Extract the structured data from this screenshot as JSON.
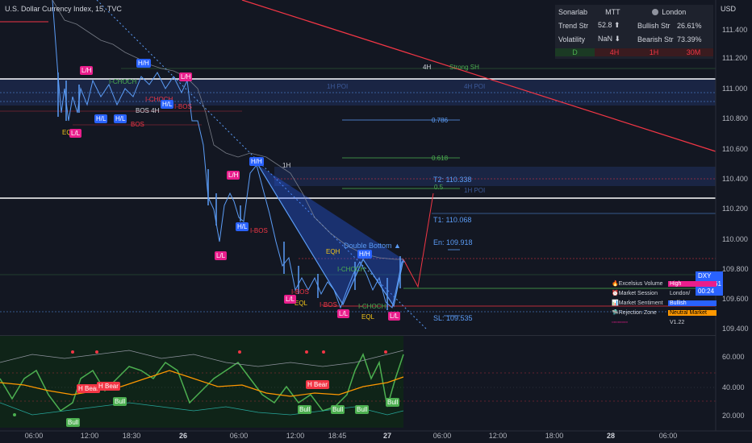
{
  "header": {
    "symbol_line": "U.S. Dollar Currency Index, 15, TVC",
    "currency": "USD"
  },
  "price_axis": {
    "ticks": [
      "111.400",
      "111.200",
      "111.000",
      "110.800",
      "110.600",
      "110.400",
      "110.200",
      "110.000",
      "109.800",
      "109.600",
      "109.400"
    ],
    "osc_ticks": [
      "60.000",
      "40.000",
      "20.000"
    ],
    "current_price": {
      "symbol": "DXY",
      "value": "109.761",
      "countdown": "00:24"
    }
  },
  "time_axis": [
    {
      "label": "06:00",
      "bold": false
    },
    {
      "label": "12:00",
      "bold": false
    },
    {
      "label": "18:30",
      "bold": false
    },
    {
      "label": "26",
      "bold": true
    },
    {
      "label": "06:00",
      "bold": false
    },
    {
      "label": "12:00",
      "bold": false
    },
    {
      "label": "18:45",
      "bold": false
    },
    {
      "label": "27",
      "bold": true
    },
    {
      "label": "06:00",
      "bold": false
    },
    {
      "label": "12:00",
      "bold": false
    },
    {
      "label": "18:00",
      "bold": false
    },
    {
      "label": "28",
      "bold": true
    },
    {
      "label": "06:00",
      "bold": false
    }
  ],
  "dashboard": {
    "row1": [
      "Sonarlab",
      "MTT",
      "London"
    ],
    "row2": [
      "Trend Str",
      "52.8 ⬆",
      "Bullish Str",
      "26.61%"
    ],
    "row3": [
      "Volatility",
      "NaN ⬇",
      "Bearish Str",
      "73.39%"
    ],
    "timeframes": [
      "D",
      "4H",
      "1H",
      "30M"
    ],
    "colors": {
      "bullish": "#4caf50",
      "bearish": "#f23645"
    }
  },
  "info_panel": {
    "rows": [
      {
        "key": "🔥Excelsius Volume",
        "value": "High",
        "color": "#e91e8c"
      },
      {
        "key": "⏰Market Session",
        "value": "London/",
        "color": ""
      },
      {
        "key": "📊Market Sentiment",
        "value": "Bullish",
        "color": "#2962ff"
      },
      {
        "key": "🛸Rejection Zone",
        "value": "Neutral Market",
        "color": "#ff9800"
      },
      {
        "key": "▫▫▫▫▫▫▫▫",
        "value": "V1.22",
        "color": ""
      }
    ]
  },
  "levels": {
    "fib_786": "0.786",
    "fib_618": "0.618",
    "fib_5": "0.5",
    "t2": "T2: 110.338",
    "t1": "T1: 110.068",
    "en": "En: 109.918",
    "sl": "SL: 109.535",
    "double_bottom": "Double Bottom ▲",
    "poi_1h": "1H POI",
    "poi_4h": "4H POI",
    "poi_1h_b": "1H POI",
    "strong_sh": "Strong SH",
    "tf_4h": "4H",
    "tf_1h": "1H"
  },
  "structure_tags": [
    {
      "t": "L/H",
      "c": "pink"
    },
    {
      "t": "H/H",
      "c": "blue"
    },
    {
      "t": "L/H",
      "c": "pink"
    },
    {
      "t": "I-CHOCH",
      "c": "grn"
    },
    {
      "t": "I-CHOCH",
      "c": "red"
    },
    {
      "t": "BOS 4H",
      "c": "wht"
    },
    {
      "t": "H/L",
      "c": "blue"
    },
    {
      "t": "H/L",
      "c": "blue"
    },
    {
      "t": "H/L",
      "c": "blue"
    },
    {
      "t": "I-BOS",
      "c": "red"
    },
    {
      "t": "EQL",
      "c": "plain"
    },
    {
      "t": "L/L",
      "c": "pink"
    },
    {
      "t": "BOS",
      "c": "red"
    },
    {
      "t": "H/H",
      "c": "blue"
    },
    {
      "t": "L/H",
      "c": "pink"
    },
    {
      "t": "H/L",
      "c": "blue"
    },
    {
      "t": "I-BOS",
      "c": "red"
    },
    {
      "t": "L/L",
      "c": "pink"
    },
    {
      "t": "EQH",
      "c": "plain"
    },
    {
      "t": "H/H",
      "c": "blue"
    },
    {
      "t": "I-CHOCH",
      "c": "grn"
    },
    {
      "t": "I-BOS",
      "c": "red"
    },
    {
      "t": "EQL",
      "c": "plain"
    },
    {
      "t": "I-BOS",
      "c": "red"
    },
    {
      "t": "L/L",
      "c": "pink"
    },
    {
      "t": "L/L",
      "c": "pink"
    },
    {
      "t": "I-CHOCH",
      "c": "grn"
    },
    {
      "t": "EQL",
      "c": "plain"
    },
    {
      "t": "L/L",
      "c": "pink"
    }
  ],
  "oscillator_tags": [
    "H Bear",
    "H Bear",
    "Bull",
    "Bull",
    "H Bear",
    "Bull",
    "Bull",
    "Bull",
    "Bull"
  ]
}
